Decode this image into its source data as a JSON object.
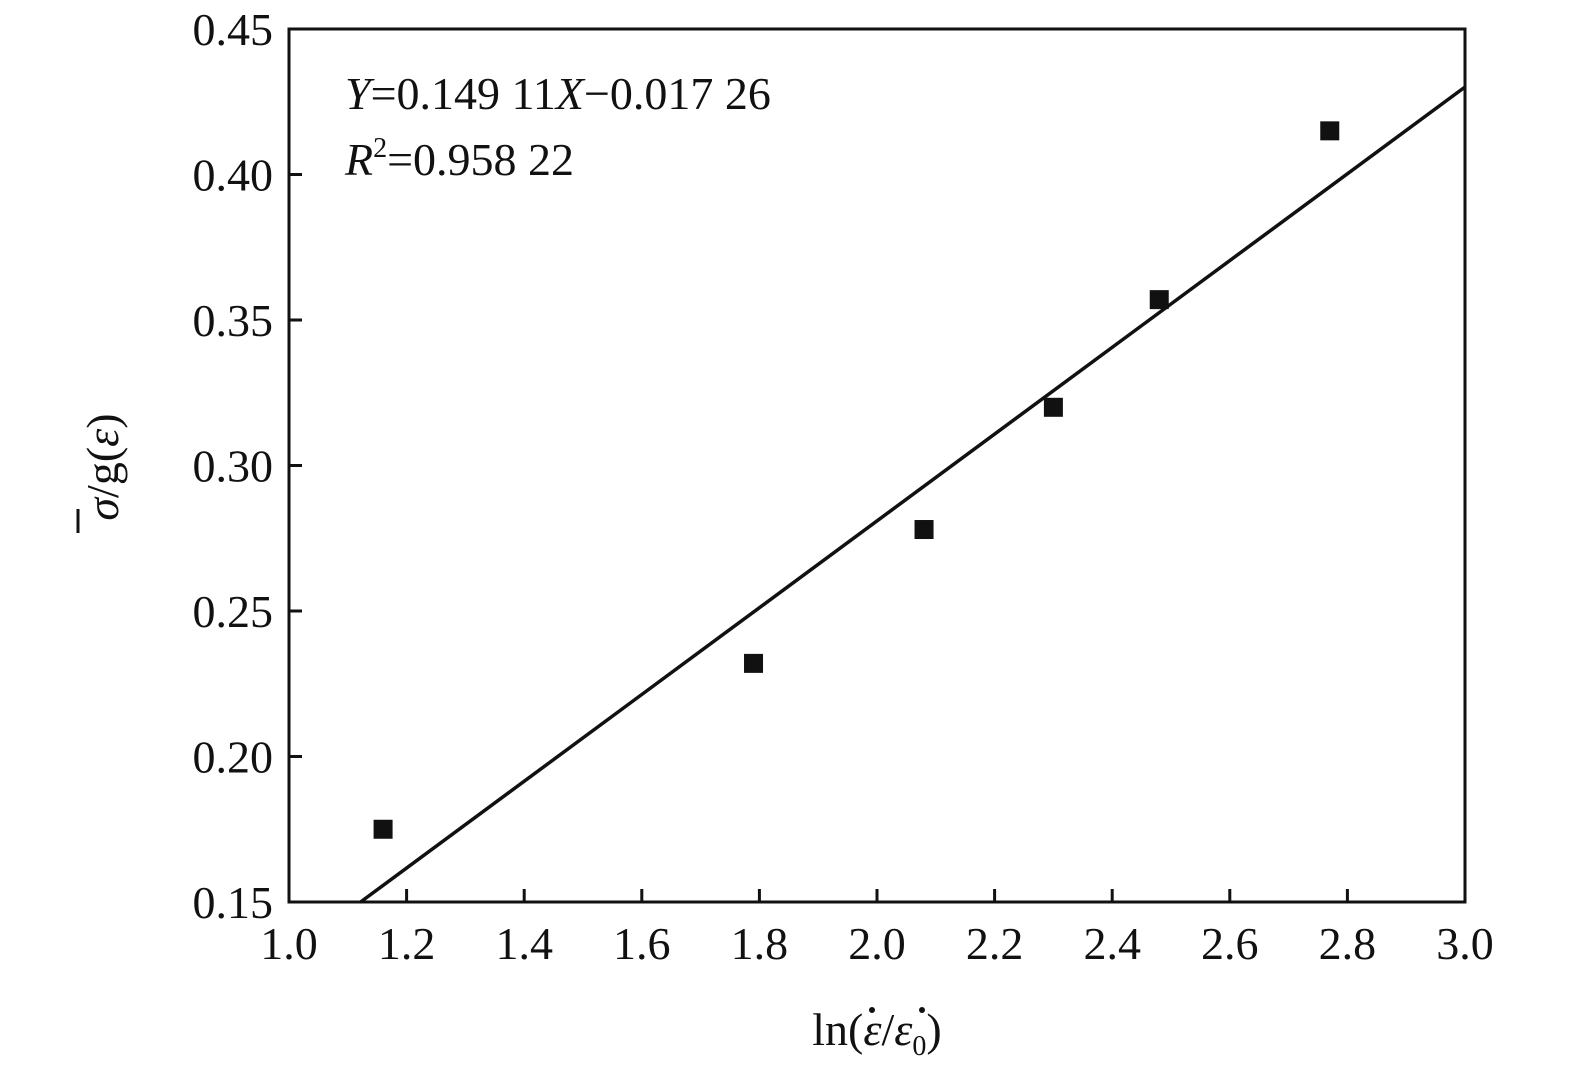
{
  "chart_data": {
    "type": "scatter",
    "x": [
      1.16,
      1.79,
      2.08,
      2.3,
      2.48,
      2.77
    ],
    "y": [
      0.175,
      0.232,
      0.278,
      0.32,
      0.357,
      0.415
    ],
    "fit_line": {
      "slope": 0.14911,
      "intercept": -0.01726
    },
    "annotations": {
      "equation": {
        "y_var": "Y",
        "mid": "=0.149 11",
        "x_var": "X",
        "end": "−0.017 26"
      },
      "r_squared": {
        "var": "R",
        "sup": "2",
        "value": "=0.958 22"
      }
    },
    "xlim": [
      1.0,
      3.0
    ],
    "ylim": [
      0.15,
      0.45
    ],
    "x_ticks": [
      "1.0",
      "1.2",
      "1.4",
      "1.6",
      "1.8",
      "2.0",
      "2.2",
      "2.4",
      "2.6",
      "2.8",
      "3.0"
    ],
    "y_ticks": [
      "0.15",
      "0.20",
      "0.25",
      "0.30",
      "0.35",
      "0.40",
      "0.45"
    ],
    "xlabel": {
      "prefix": "ln(",
      "num": "ε",
      "slash": "/",
      "den": "ε",
      "sub": "0",
      "suffix": ")"
    },
    "ylabel": {
      "sym": "σ",
      "rest": "/g(",
      "eps": "ε",
      "close": ")"
    },
    "grid": false,
    "colors": {
      "marker": "#111111",
      "line": "#111111",
      "axis": "#111111"
    }
  }
}
